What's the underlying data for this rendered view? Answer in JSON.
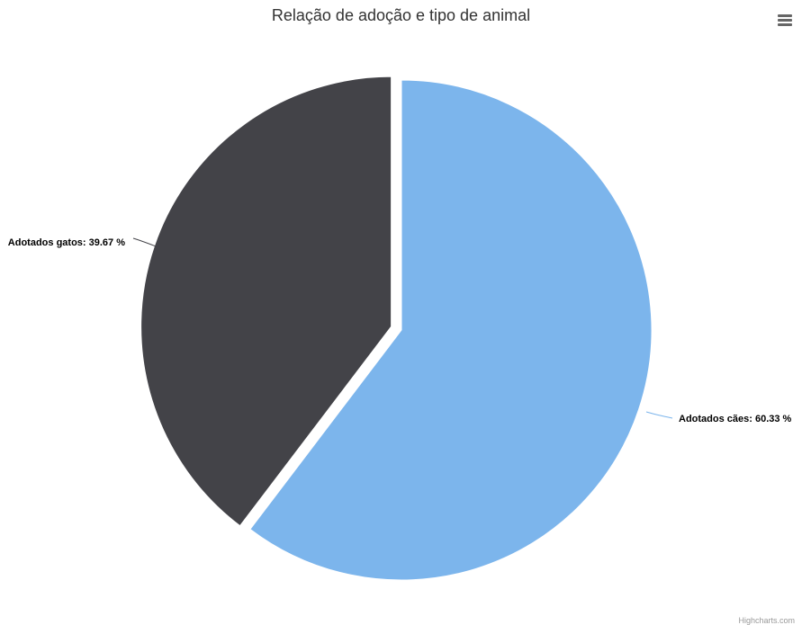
{
  "chart": {
    "title": "Relação de adoção e tipo de animal",
    "credits": "Highcharts.com",
    "menu_icon": "hamburger-menu-icon"
  },
  "chart_data": {
    "type": "pie",
    "title": "Relação de adoção e tipo de animal",
    "slices": [
      {
        "name": "Adotados cães",
        "value": 60.33,
        "label": "Adotados cães: 60.33 %",
        "color": "#7cb5ec",
        "sliced": false
      },
      {
        "name": "Adotados gatos",
        "value": 39.67,
        "label": "Adotados gatos: 39.67 %",
        "color": "#434348",
        "sliced": true
      }
    ],
    "legend": false
  }
}
